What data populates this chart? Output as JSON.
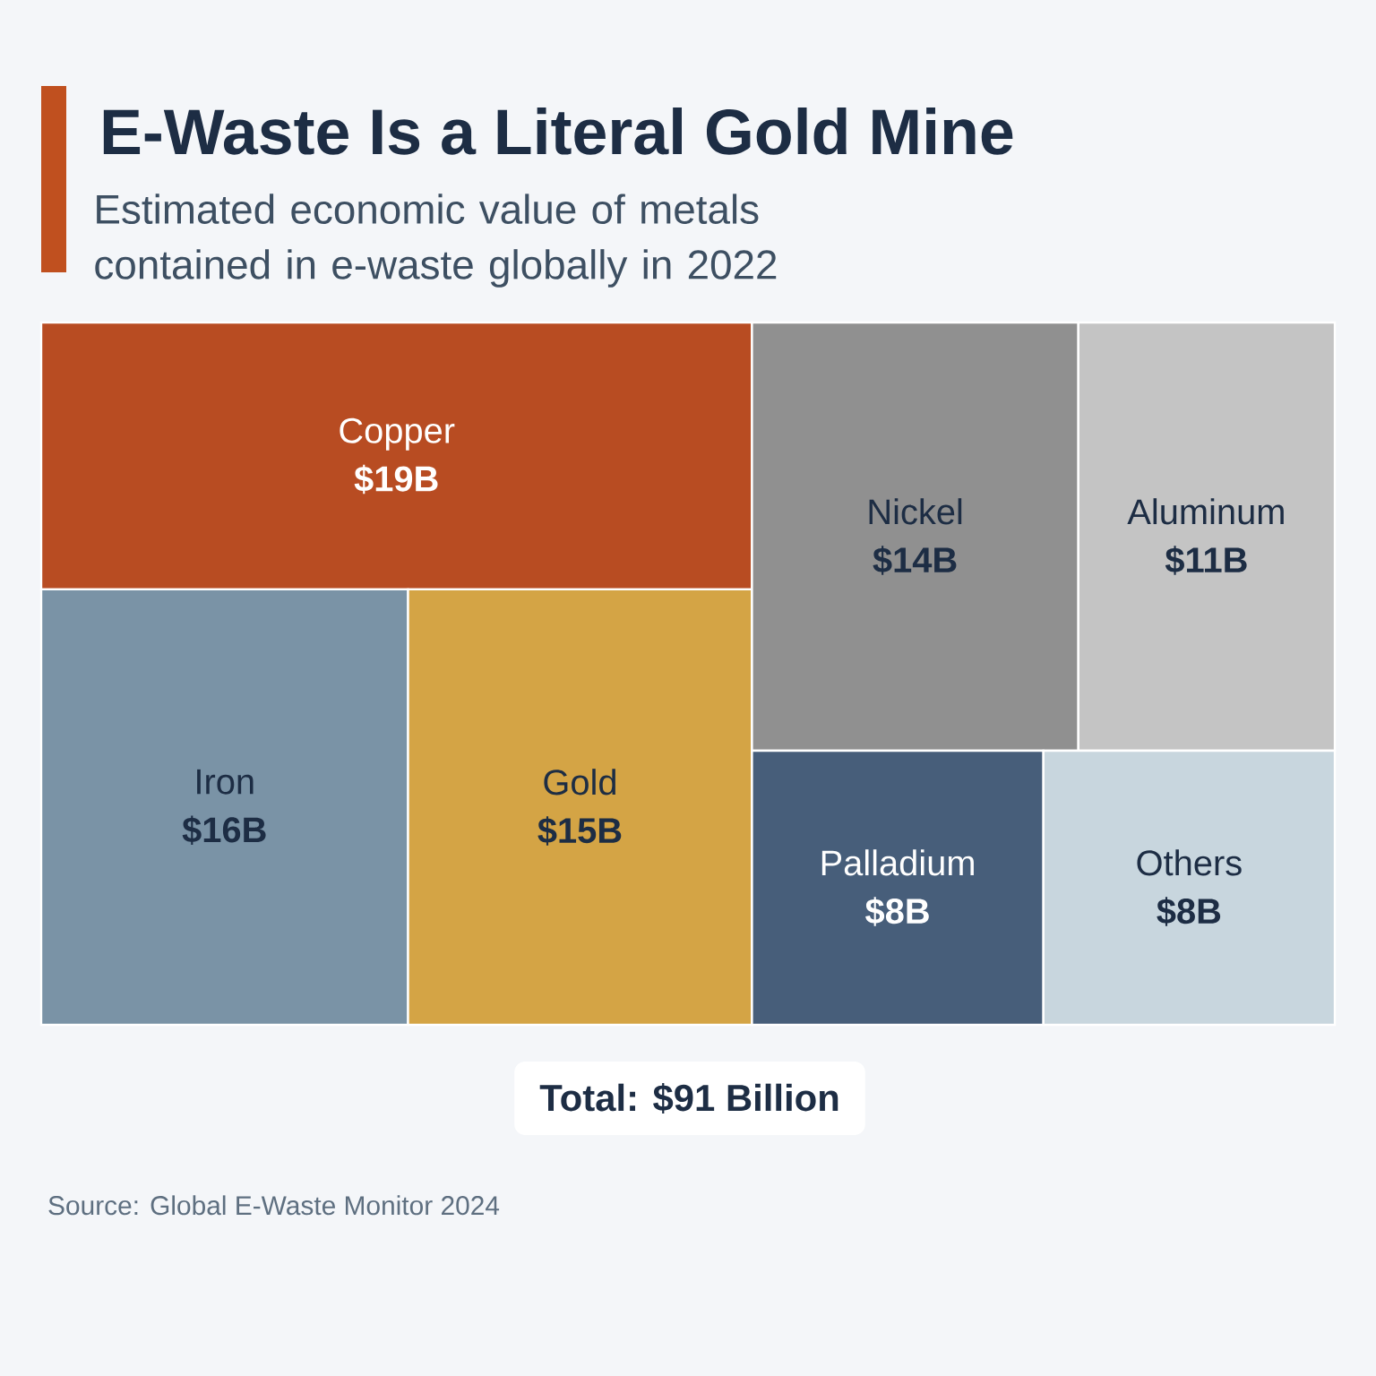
{
  "chart_data": {
    "type": "other",
    "title": "E-Waste Is a Literal Gold Mine",
    "subtitle": "Estimated economic value of metals contained in e-waste globally in 2022",
    "categories": [
      "Copper",
      "Iron",
      "Gold",
      "Nickel",
      "Aluminum",
      "Palladium",
      "Others"
    ],
    "values": [
      19,
      16,
      15,
      14,
      11,
      8,
      8
    ],
    "value_labels": [
      "$19B",
      "$16B",
      "$15B",
      "$14B",
      "$11B",
      "$8B",
      "$8B"
    ],
    "colors": [
      "#b84c22",
      "#7a93a6",
      "#d4a445",
      "#909090",
      "#c4c4c4",
      "#475e7a",
      "#c8d6de"
    ],
    "annotations": [
      "Total: $91 Billion",
      "Source: Global E-Waste Monitor 2024"
    ]
  }
}
